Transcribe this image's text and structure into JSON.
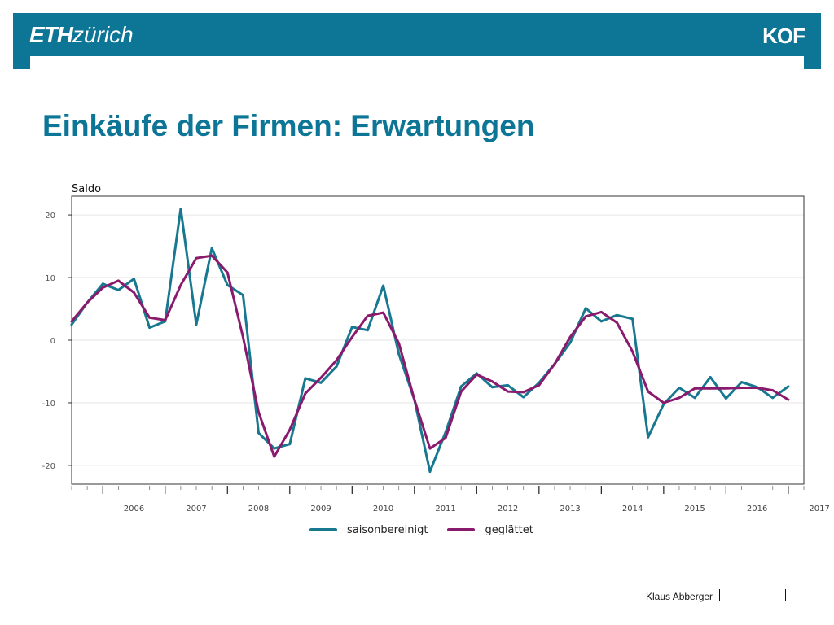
{
  "header": {
    "logo_left_bold": "ETH",
    "logo_left_text": "zürich",
    "logo_right": "KOF",
    "brand_color": "#0d7595"
  },
  "title": "Einkäufe der Firmen: Erwartungen",
  "footer": {
    "author": "Klaus Abberger"
  },
  "chart_data": {
    "type": "line",
    "ylabel": "Saldo",
    "ylim": [
      -23,
      23
    ],
    "yticks": [
      20,
      10,
      0,
      -10,
      -20
    ],
    "xlim": [
      2005.5,
      2017.25
    ],
    "x_tick_labels": [
      "2006",
      "2007",
      "2008",
      "2009",
      "2010",
      "2011",
      "2012",
      "2013",
      "2014",
      "2015",
      "2016",
      "2017"
    ],
    "grid": true,
    "legend_position": "bottom",
    "x": [
      2005.5,
      2005.75,
      2006.0,
      2006.25,
      2006.5,
      2006.75,
      2007.0,
      2007.25,
      2007.5,
      2007.75,
      2008.0,
      2008.25,
      2008.5,
      2008.75,
      2009.0,
      2009.25,
      2009.5,
      2009.75,
      2010.0,
      2010.25,
      2010.5,
      2010.75,
      2011.0,
      2011.25,
      2011.5,
      2011.75,
      2012.0,
      2012.25,
      2012.5,
      2012.75,
      2013.0,
      2013.25,
      2013.5,
      2013.75,
      2014.0,
      2014.25,
      2014.5,
      2014.75,
      2015.0,
      2015.25,
      2015.5,
      2015.75,
      2016.0,
      2016.25,
      2016.5,
      2016.75,
      2017.0,
      2017.25
    ],
    "series": [
      {
        "name": "saisonbereinigt",
        "color": "#17788f",
        "values": [
          2.5,
          6.0,
          9.0,
          8.0,
          9.8,
          2.0,
          3.0,
          21.0,
          2.5,
          14.7,
          8.8,
          7.2,
          -14.8,
          -17.3,
          -16.6,
          -6.1,
          -6.8,
          -4.2,
          2.1,
          1.6,
          8.7,
          -2.2,
          -9.5,
          -21.0,
          -14.7,
          -7.4,
          -5.3,
          -7.5,
          -7.2,
          -9.1,
          -6.8,
          -3.8,
          -0.4,
          5.1,
          3.0,
          4.0,
          3.4,
          -15.5,
          -10.2,
          -7.6,
          -9.2,
          -5.9,
          -9.3,
          -6.7,
          -7.5,
          -9.2,
          -7.4,
          null
        ]
      },
      {
        "name": "geglättet",
        "color": "#8a1a6e",
        "values": [
          3.0,
          6.0,
          8.4,
          9.5,
          7.6,
          3.6,
          3.2,
          8.8,
          13.1,
          13.5,
          10.8,
          0.5,
          -11.5,
          -18.6,
          -14.3,
          -8.5,
          -6.0,
          -3.2,
          0.5,
          3.9,
          4.4,
          -0.5,
          -9.5,
          -17.3,
          -15.6,
          -8.2,
          -5.5,
          -6.6,
          -8.2,
          -8.3,
          -7.2,
          -3.8,
          0.5,
          3.8,
          4.5,
          2.8,
          -1.8,
          -8.2,
          -10.0,
          -9.2,
          -7.7,
          -7.7,
          -7.7,
          -7.6,
          -7.6,
          -8.0,
          -9.5,
          null
        ]
      }
    ]
  }
}
